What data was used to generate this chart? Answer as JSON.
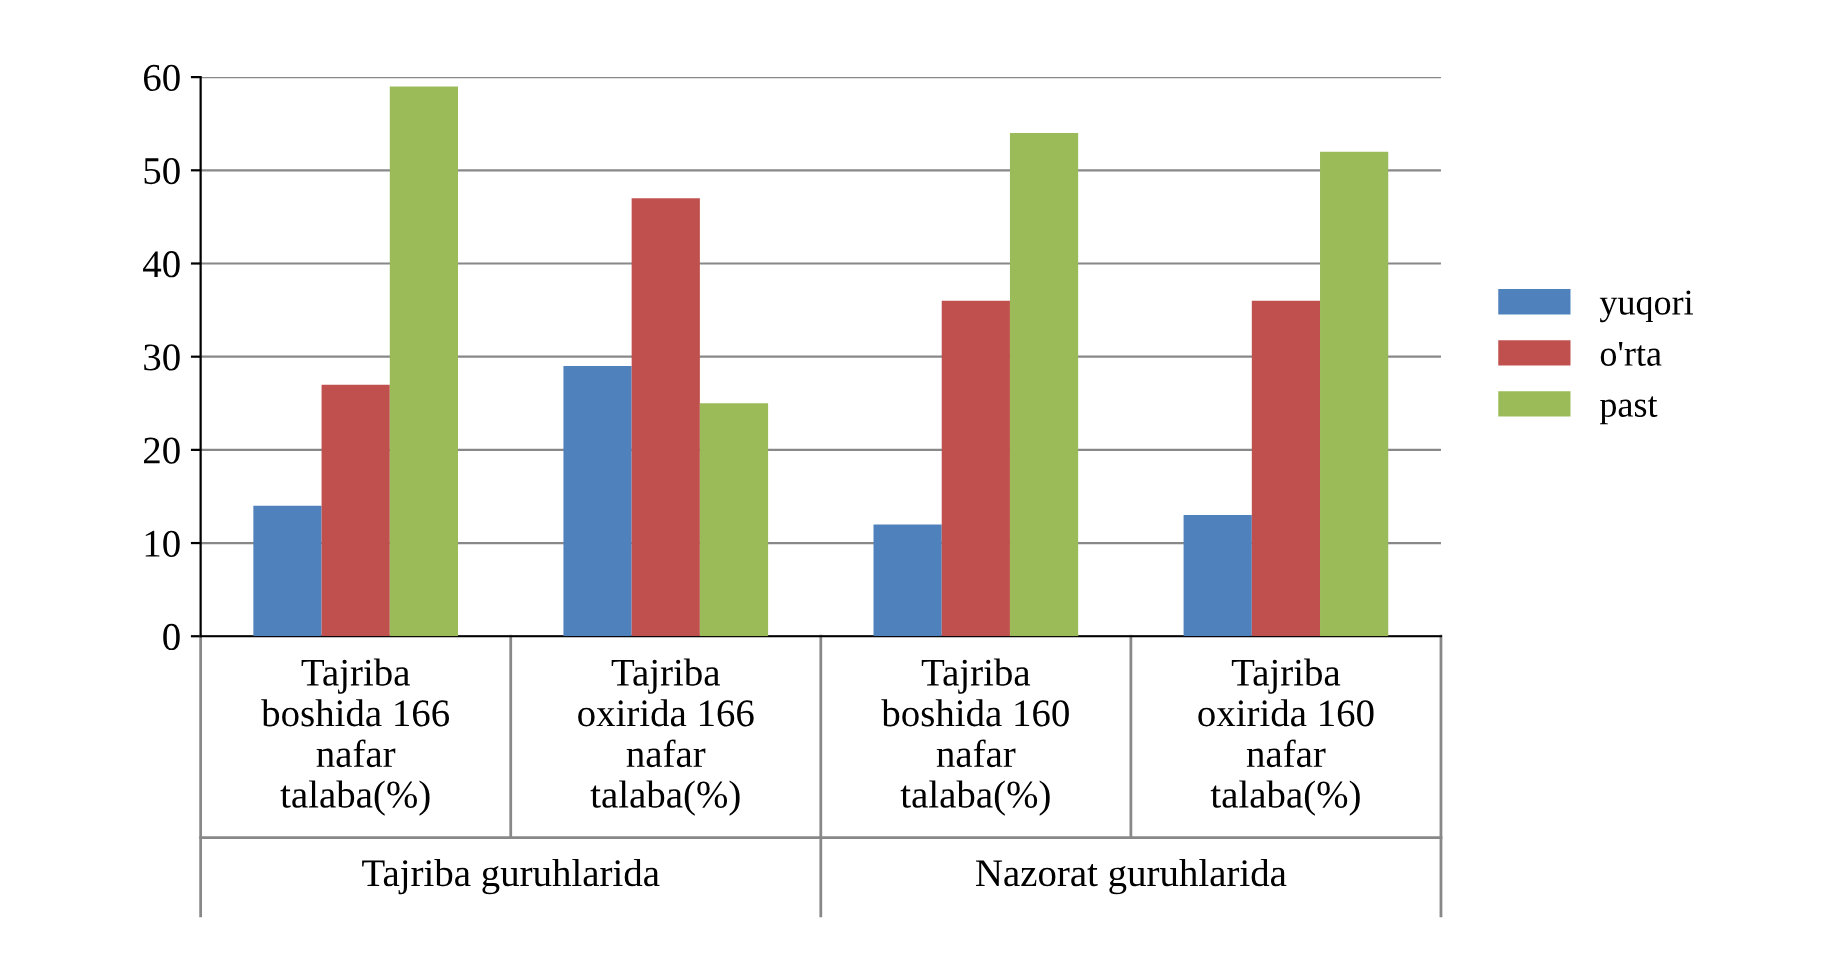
{
  "chart_data": {
    "type": "bar",
    "categories": [
      "Tajriba\nboshida 166\nnafar\ntalaba(%)",
      "Tajriba\noxirida 166\nnafar\ntalaba(%)",
      "Tajriba\nboshida 160\nnafar\ntalaba(%)",
      "Tajriba\noxirida 160\nnafar\ntalaba(%)"
    ],
    "series": [
      {
        "name": "yuqori",
        "color": "#4f81bd",
        "values": [
          14,
          29,
          12,
          13
        ]
      },
      {
        "name": "o'rta",
        "color": "#c0504d",
        "values": [
          27,
          47,
          36,
          36
        ]
      },
      {
        "name": "past",
        "color": "#9bbb59",
        "values": [
          59,
          25,
          54,
          52
        ]
      }
    ],
    "ylim": [
      0,
      60
    ],
    "yticks": [
      0,
      10,
      20,
      30,
      40,
      50,
      60
    ],
    "grid": "y",
    "legend": "right",
    "annotations": [
      "Tajriba guruhlarida",
      "Nazorat guruhlarida"
    ]
  }
}
